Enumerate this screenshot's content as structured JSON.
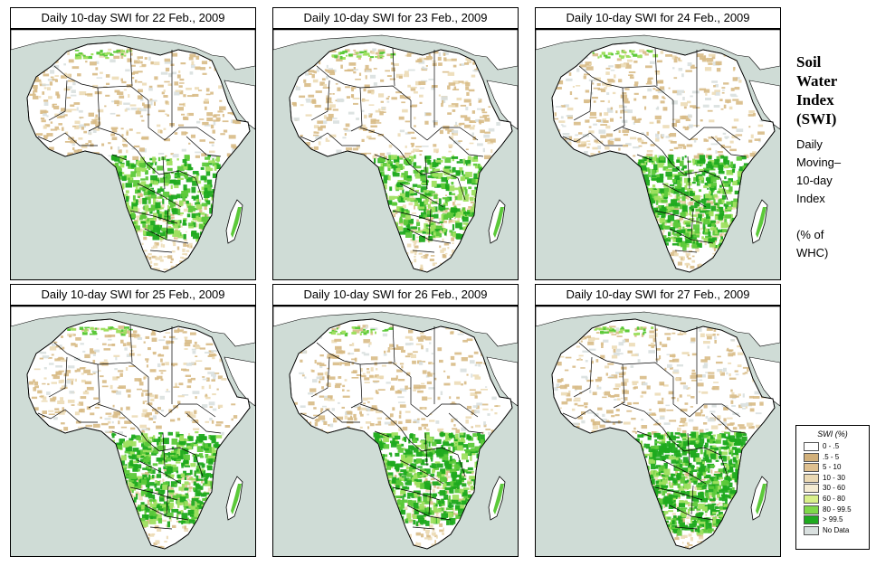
{
  "panels": [
    {
      "title": "Daily 10-day SWI for  22 Feb., 2009",
      "wet_level": 1
    },
    {
      "title": "Daily 10-day SWI for  23 Feb., 2009",
      "wet_level": 1
    },
    {
      "title": "Daily 10-day SWI for  24 Feb., 2009",
      "wet_level": 2
    },
    {
      "title": "Daily 10-day SWI for  25 Feb., 2009",
      "wet_level": 2
    },
    {
      "title": "Daily 10-day SWI for  26 Feb., 2009",
      "wet_level": 2
    },
    {
      "title": "Daily 10-day SWI for  27 Feb., 2009",
      "wet_level": 3
    }
  ],
  "sidebar": {
    "title_lines": [
      "Soil",
      "Water",
      "Index",
      "(SWI)"
    ],
    "desc_lines": [
      "Daily",
      "Moving–",
      "10-day",
      "Index"
    ],
    "unit_lines": [
      "(% of",
      "WHC)"
    ]
  },
  "legend": {
    "title": "SWI (%)",
    "items": [
      {
        "label": "0 - .5",
        "color": "#ffffff"
      },
      {
        "label": ".5 - 5",
        "color": "#d2b07a"
      },
      {
        "label": "5 - 10",
        "color": "#dfc08f"
      },
      {
        "label": "10 - 30",
        "color": "#ebd9b3"
      },
      {
        "label": "30 - 60",
        "color": "#f5ecd2"
      },
      {
        "label": "60 - 80",
        "color": "#d9f08a"
      },
      {
        "label": "80 - 99.5",
        "color": "#7fd84a"
      },
      {
        "label": "> 99.5",
        "color": "#1faa1f"
      },
      {
        "label": "No Data",
        "color": "#d9e0df"
      }
    ]
  },
  "colors": {
    "ocean": "#cfdcd6",
    "land_dry": "#ffffff",
    "land_tan": "#d8bb86",
    "land_light_tan": "#ecdcb6",
    "wet_light": "#9fe060",
    "wet_mid": "#5cc93a",
    "wet_dark": "#1faa1f",
    "nodata": "#d9e0df"
  }
}
